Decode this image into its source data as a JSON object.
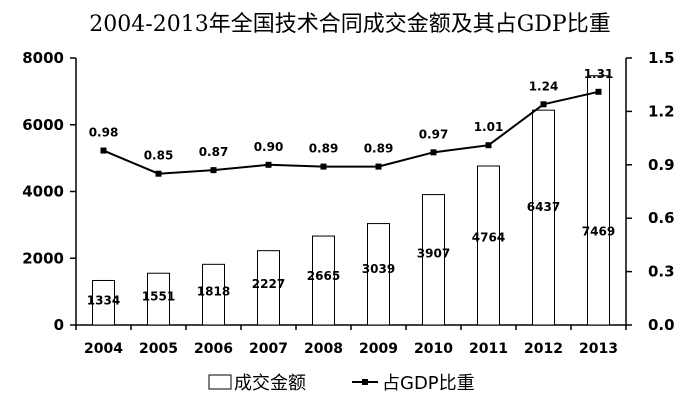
{
  "chart_data": {
    "type": "bar+line",
    "title": "2004-2013年全国技术合同成交金额及其占GDP比重",
    "categories": [
      "2004",
      "2005",
      "2006",
      "2007",
      "2008",
      "2009",
      "2010",
      "2011",
      "2012",
      "2013"
    ],
    "series": [
      {
        "name": "成交金额",
        "type": "bar",
        "axis": "left",
        "values": [
          1334,
          1551,
          1818,
          2227,
          2665,
          3039,
          3907,
          4764,
          6437,
          7469
        ],
        "labels": [
          "1334",
          "1551",
          "1818",
          "2227",
          "2665",
          "3039",
          "3907",
          "4764",
          "6437",
          "7469"
        ]
      },
      {
        "name": "占GDP比重",
        "type": "line",
        "axis": "right",
        "values": [
          0.98,
          0.85,
          0.87,
          0.9,
          0.89,
          0.89,
          0.97,
          1.01,
          1.24,
          1.31
        ],
        "labels": [
          "0.98",
          "0.85",
          "0.87",
          "0.90",
          "0.89",
          "0.89",
          "0.97",
          "1.01",
          "1.24",
          "1.31"
        ]
      }
    ],
    "y_left": {
      "min": 0,
      "max": 8000,
      "ticks": [
        "0",
        "2000",
        "4000",
        "6000",
        "8000"
      ]
    },
    "y_right": {
      "min": 0,
      "max": 1.5,
      "ticks": [
        "0.0",
        "0.3",
        "0.6",
        "0.9",
        "1.2",
        "1.5"
      ]
    },
    "legend": {
      "position": "bottom-center",
      "items": [
        "成交金额",
        "占GDP比重"
      ]
    }
  }
}
